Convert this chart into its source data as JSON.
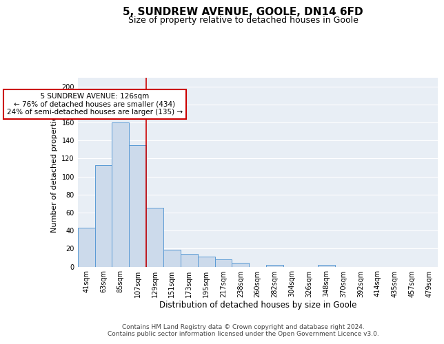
{
  "title1": "5, SUNDREW AVENUE, GOOLE, DN14 6FD",
  "title2": "Size of property relative to detached houses in Goole",
  "xlabel": "Distribution of detached houses by size in Goole",
  "ylabel": "Number of detached properties",
  "categories": [
    "41sqm",
    "63sqm",
    "85sqm",
    "107sqm",
    "129sqm",
    "151sqm",
    "173sqm",
    "195sqm",
    "217sqm",
    "238sqm",
    "260sqm",
    "282sqm",
    "304sqm",
    "326sqm",
    "348sqm",
    "370sqm",
    "392sqm",
    "414sqm",
    "435sqm",
    "457sqm",
    "479sqm"
  ],
  "values": [
    43,
    113,
    160,
    135,
    65,
    19,
    14,
    11,
    8,
    4,
    0,
    2,
    0,
    0,
    2,
    0,
    0,
    0,
    0,
    0,
    0
  ],
  "bar_color": "#ccdaeb",
  "bar_edge_color": "#5b9bd5",
  "bg_color": "#e8eef5",
  "grid_color": "#ffffff",
  "annotation_text": "  5 SUNDREW AVENUE: 126sqm  \n← 76% of detached houses are smaller (434)\n24% of semi-detached houses are larger (135) →",
  "annotation_box_color": "#ffffff",
  "annotation_box_edge": "#cc0000",
  "vline_x": 3.5,
  "vline_color": "#cc0000",
  "ylim": [
    0,
    210
  ],
  "yticks": [
    0,
    20,
    40,
    60,
    80,
    100,
    120,
    140,
    160,
    180,
    200
  ],
  "footer": "Contains HM Land Registry data © Crown copyright and database right 2024.\nContains public sector information licensed under the Open Government Licence v3.0.",
  "title1_fontsize": 11,
  "title2_fontsize": 9,
  "xlabel_fontsize": 8.5,
  "ylabel_fontsize": 8,
  "tick_fontsize": 7,
  "annotation_fontsize": 7.5,
  "footer_fontsize": 6.5
}
